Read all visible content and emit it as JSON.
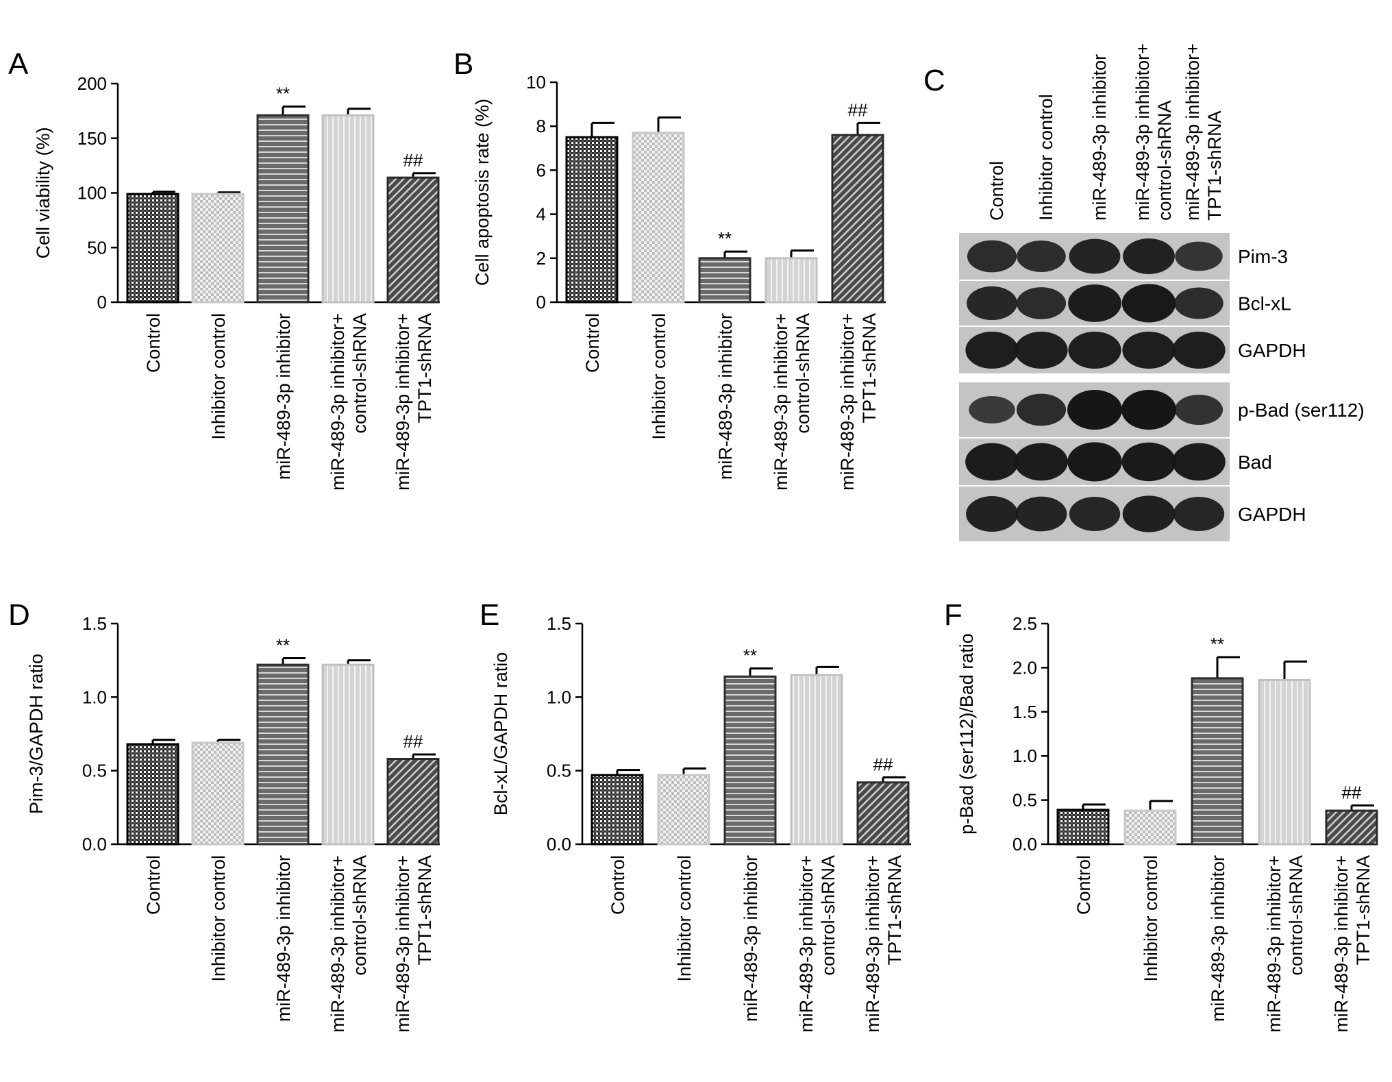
{
  "panels": {
    "A": "A",
    "B": "B",
    "C": "C",
    "D": "D",
    "E": "E",
    "F": "F"
  },
  "colors": {
    "control": "#3a3a3a",
    "inhibitor_control": "#d8d8d8",
    "inhibitor": "#707070",
    "inhibitor_ctrl_shrna": "#d4d4d4",
    "inhibitor_tpt1_shrna": "#5a5a5a",
    "blot_bg": "#c4c4c4",
    "band": "#161616"
  },
  "chart_data": [
    {
      "id": "A",
      "type": "bar",
      "categories": [
        [
          "Control"
        ],
        [
          "Inhibitor control"
        ],
        [
          "miR-489-3p inhibitor"
        ],
        [
          "miR-489-3p inhibitor+",
          "control-shRNA"
        ],
        [
          "miR-489-3p inhibitor+",
          "TPT1-shRNA"
        ]
      ],
      "values": [
        99,
        99,
        171,
        171,
        114
      ],
      "errors": [
        2,
        1.5,
        8,
        6,
        4
      ],
      "annotations": [
        "",
        "",
        "**",
        "",
        "##"
      ],
      "ylabel": "Cell viability (%)",
      "xlabel": "",
      "ylim": [
        0,
        200
      ],
      "yticks": [
        "0",
        "50",
        "100",
        "150",
        "200"
      ]
    },
    {
      "id": "B",
      "type": "bar",
      "categories": [
        [
          "Control"
        ],
        [
          "Inhibitor control"
        ],
        [
          "miR-489-3p inhibitor"
        ],
        [
          "miR-489-3p inhibitor+",
          "control-shRNA"
        ],
        [
          "miR-489-3p inhibitor+",
          "TPT1-shRNA"
        ]
      ],
      "values": [
        7.5,
        7.7,
        2.0,
        2.0,
        7.6
      ],
      "errors": [
        0.65,
        0.7,
        0.3,
        0.35,
        0.55
      ],
      "annotations": [
        "",
        "",
        "**",
        "",
        "##"
      ],
      "ylabel": "Cell apoptosis rate (%)",
      "xlabel": "",
      "ylim": [
        0,
        10
      ],
      "yticks": [
        "0",
        "2",
        "4",
        "6",
        "8",
        "10"
      ]
    },
    {
      "id": "D",
      "type": "bar",
      "categories": [
        [
          "Control"
        ],
        [
          "Inhibitor control"
        ],
        [
          "miR-489-3p inhibitor"
        ],
        [
          "miR-489-3p inhibitor+",
          "control-shRNA"
        ],
        [
          "miR-489-3p inhibitor+",
          "TPT1-shRNA"
        ]
      ],
      "values": [
        0.68,
        0.69,
        1.22,
        1.22,
        0.58
      ],
      "errors": [
        0.03,
        0.02,
        0.045,
        0.03,
        0.03
      ],
      "annotations": [
        "",
        "",
        "**",
        "",
        "##"
      ],
      "ylabel": "Pim-3/GAPDH ratio",
      "xlabel": "",
      "ylim": [
        0,
        1.5
      ],
      "yticks": [
        "0.0",
        "0.5",
        "1.0",
        "1.5"
      ]
    },
    {
      "id": "E",
      "type": "bar",
      "categories": [
        [
          "Control"
        ],
        [
          "Inhibitor control"
        ],
        [
          "miR-489-3p inhibitor"
        ],
        [
          "miR-489-3p inhibitor+",
          "control-shRNA"
        ],
        [
          "miR-489-3p inhibitor+",
          "TPT1-shRNA"
        ]
      ],
      "values": [
        0.47,
        0.47,
        1.14,
        1.15,
        0.42
      ],
      "errors": [
        0.035,
        0.045,
        0.055,
        0.055,
        0.035
      ],
      "annotations": [
        "",
        "",
        "**",
        "",
        "##"
      ],
      "ylabel": "Bcl-xL/GAPDH ratio",
      "xlabel": "",
      "ylim": [
        0,
        1.5
      ],
      "yticks": [
        "0.0",
        "0.5",
        "1.0",
        "1.5"
      ]
    },
    {
      "id": "F",
      "type": "bar",
      "categories": [
        [
          "Control"
        ],
        [
          "Inhibitor control"
        ],
        [
          "miR-489-3p inhibitor"
        ],
        [
          "miR-489-3p inhibitor+",
          "control-shRNA"
        ],
        [
          "miR-489-3p inhibitor+",
          "TPT1-shRNA"
        ]
      ],
      "values": [
        0.39,
        0.38,
        1.88,
        1.86,
        0.38
      ],
      "errors": [
        0.06,
        0.11,
        0.24,
        0.21,
        0.06
      ],
      "annotations": [
        "",
        "",
        "**",
        "",
        "##"
      ],
      "ylabel": "p-Bad (ser112)/Bad ratio",
      "xlabel": "",
      "ylim": [
        0,
        2.5
      ],
      "yticks": [
        "0.0",
        "0.5",
        "1.0",
        "1.5",
        "2.0",
        "2.5"
      ]
    }
  ],
  "western_blot": {
    "lanes": [
      [
        "Control"
      ],
      [
        "Inhibitor control"
      ],
      [
        "miR-489-3p inhibitor"
      ],
      [
        "miR-489-3p inhibitor+",
        "control-shRNA"
      ],
      [
        "miR-489-3p inhibitor+",
        "TPT1-shRNA"
      ]
    ],
    "rows": [
      {
        "label": "Pim-3",
        "intensity": [
          0.72,
          0.7,
          0.82,
          0.85,
          0.62
        ]
      },
      {
        "label": "Bcl-xL",
        "intensity": [
          0.78,
          0.72,
          0.92,
          0.95,
          0.7
        ]
      },
      {
        "label": "GAPDH",
        "intensity": [
          0.9,
          0.9,
          0.9,
          0.9,
          0.9
        ]
      },
      {
        "label": "p-Bad (ser112)",
        "intensity": [
          0.55,
          0.72,
          1.0,
          1.0,
          0.65
        ]
      },
      {
        "label": "Bad",
        "intensity": [
          0.92,
          0.92,
          0.98,
          0.96,
          0.92
        ]
      },
      {
        "label": "GAPDH",
        "intensity": [
          0.85,
          0.82,
          0.8,
          0.88,
          0.8
        ]
      }
    ]
  }
}
